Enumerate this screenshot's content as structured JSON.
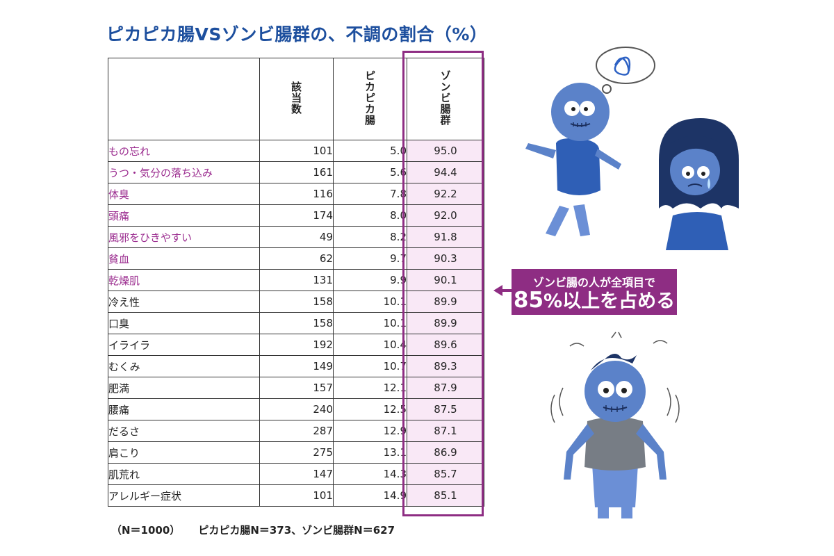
{
  "title": "ピカピカ腸VSゾンビ腸群の、不調の割合（%）",
  "table": {
    "headers": [
      "",
      "該当数",
      "ピカピカ腸",
      "ゾンビ腸群"
    ],
    "rows": [
      {
        "symptom": "もの忘れ",
        "count": "101",
        "pika": "5.0",
        "zombie": "95.0",
        "highlight": true
      },
      {
        "symptom": "うつ・気分の落ち込み",
        "count": "161",
        "pika": "5.6",
        "zombie": "94.4",
        "highlight": true
      },
      {
        "symptom": "体臭",
        "count": "116",
        "pika": "7.8",
        "zombie": "92.2",
        "highlight": true
      },
      {
        "symptom": "頭痛",
        "count": "174",
        "pika": "8.0",
        "zombie": "92.0",
        "highlight": true
      },
      {
        "symptom": "風邪をひきやすい",
        "count": "49",
        "pika": "8.2",
        "zombie": "91.8",
        "highlight": true
      },
      {
        "symptom": "貧血",
        "count": "62",
        "pika": "9.7",
        "zombie": "90.3",
        "highlight": true
      },
      {
        "symptom": "乾燥肌",
        "count": "131",
        "pika": "9.9",
        "zombie": "90.1",
        "highlight": true
      },
      {
        "symptom": "冷え性",
        "count": "158",
        "pika": "10.1",
        "zombie": "89.9",
        "highlight": false
      },
      {
        "symptom": "口臭",
        "count": "158",
        "pika": "10.1",
        "zombie": "89.9",
        "highlight": false
      },
      {
        "symptom": "イライラ",
        "count": "192",
        "pika": "10.4",
        "zombie": "89.6",
        "highlight": false
      },
      {
        "symptom": "むくみ",
        "count": "149",
        "pika": "10.7",
        "zombie": "89.3",
        "highlight": false
      },
      {
        "symptom": "肥満",
        "count": "157",
        "pika": "12.1",
        "zombie": "87.9",
        "highlight": false
      },
      {
        "symptom": "腰痛",
        "count": "240",
        "pika": "12.5",
        "zombie": "87.5",
        "highlight": false
      },
      {
        "symptom": "だるさ",
        "count": "287",
        "pika": "12.9",
        "zombie": "87.1",
        "highlight": false
      },
      {
        "symptom": "肩こり",
        "count": "275",
        "pika": "13.1",
        "zombie": "86.9",
        "highlight": false
      },
      {
        "symptom": "肌荒れ",
        "count": "147",
        "pika": "14.3",
        "zombie": "85.7",
        "highlight": false
      },
      {
        "symptom": "アレルギー症状",
        "count": "101",
        "pika": "14.9",
        "zombie": "85.1",
        "highlight": false
      }
    ]
  },
  "note": {
    "total": "（N＝1000）",
    "groups": "ピカピカ腸N＝373、ゾンビ腸群N＝627"
  },
  "callout": {
    "line1": "ゾンビ腸の人が全項目で",
    "number": "85",
    "line2_rest": "%以上を占める"
  },
  "colors": {
    "title": "#1d4f9e",
    "accent": "#8e2d83",
    "highlight_text": "#9b2c8f",
    "zombie_column_bg": "#f9e8f6",
    "zombie_skin": "#5b82c9"
  },
  "chart_data": {
    "type": "table",
    "title": "ピカピカ腸VSゾンビ腸群の、不調の割合（%）",
    "columns": [
      "該当数",
      "ピカピカ腸",
      "ゾンビ腸群"
    ],
    "categories": [
      "もの忘れ",
      "うつ・気分の落ち込み",
      "体臭",
      "頭痛",
      "風邪をひきやすい",
      "貧血",
      "乾燥肌",
      "冷え性",
      "口臭",
      "イライラ",
      "むくみ",
      "肥満",
      "腰痛",
      "だるさ",
      "肩こり",
      "肌荒れ",
      "アレルギー症状"
    ],
    "series": [
      {
        "name": "該当数",
        "values": [
          101,
          161,
          116,
          174,
          49,
          62,
          131,
          158,
          158,
          192,
          149,
          157,
          240,
          287,
          275,
          147,
          101
        ]
      },
      {
        "name": "ピカピカ腸",
        "values": [
          5.0,
          5.6,
          7.8,
          8.0,
          8.2,
          9.7,
          9.9,
          10.1,
          10.1,
          10.4,
          10.7,
          12.1,
          12.5,
          12.9,
          13.1,
          14.3,
          14.9
        ]
      },
      {
        "name": "ゾンビ腸群",
        "values": [
          95.0,
          94.4,
          92.2,
          92.0,
          91.8,
          90.3,
          90.1,
          89.9,
          89.9,
          89.6,
          89.3,
          87.9,
          87.5,
          87.1,
          86.9,
          85.7,
          85.1
        ]
      }
    ]
  }
}
